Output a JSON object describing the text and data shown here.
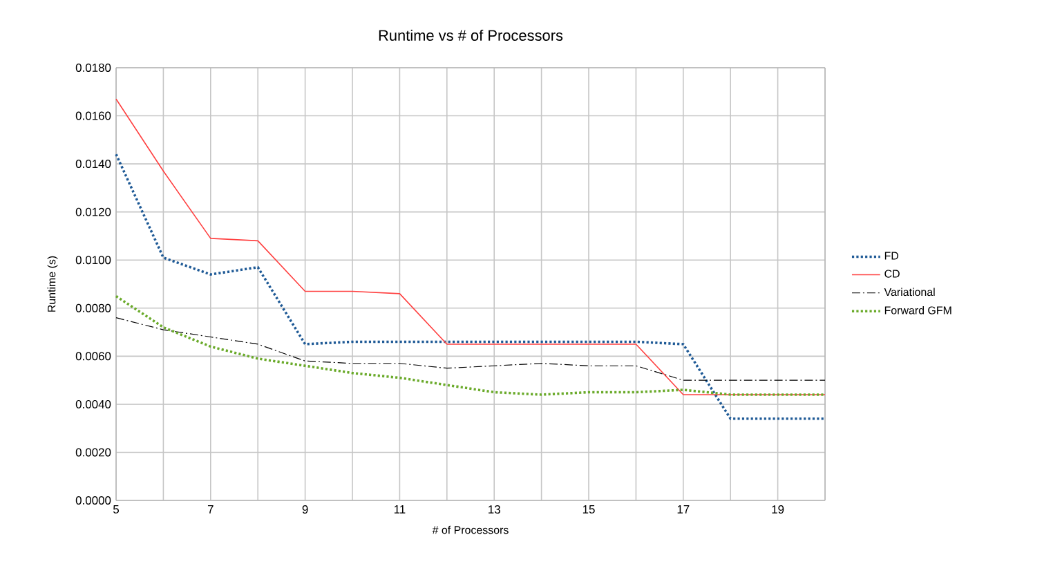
{
  "chart_data": {
    "type": "line",
    "title": "Runtime vs # of Processors",
    "xlabel": "# of Processors",
    "ylabel": "Runtime (s)",
    "x": [
      5,
      6,
      7,
      8,
      9,
      10,
      11,
      12,
      13,
      14,
      15,
      16,
      17,
      18,
      19,
      20
    ],
    "xlim": [
      5,
      20
    ],
    "xticks": [
      5,
      {
        "value": 6,
        "label": null
      },
      7,
      {
        "value": 8,
        "label": null
      },
      9,
      {
        "value": 10,
        "label": null
      },
      11,
      {
        "value": 12,
        "label": null
      },
      13,
      {
        "value": 14,
        "label": null
      },
      15,
      {
        "value": 16,
        "label": null
      },
      17,
      {
        "value": 18,
        "label": null
      },
      19,
      {
        "value": 20,
        "label": null
      }
    ],
    "ylim": [
      0,
      0.018
    ],
    "yticks": [
      {
        "value": 0,
        "label": "0.0000"
      },
      {
        "value": 0.002,
        "label": "0.0020"
      },
      {
        "value": 0.004,
        "label": "0.0040"
      },
      {
        "value": 0.006,
        "label": "0.0060"
      },
      {
        "value": 0.008,
        "label": "0.0080"
      },
      {
        "value": 0.01,
        "label": "0.0100"
      },
      {
        "value": 0.012,
        "label": "0.0120"
      },
      {
        "value": 0.014,
        "label": "0.0140"
      },
      {
        "value": 0.016,
        "label": "0.0160"
      },
      {
        "value": 0.018,
        "label": "0.0180"
      }
    ],
    "grid": true,
    "legend": "right",
    "marker": "none",
    "series": [
      {
        "name": "FD",
        "color": "#1f5a96",
        "line_style": "dotted",
        "values": [
          0.0144,
          0.0101,
          0.0094,
          0.0097,
          0.0065,
          0.0066,
          0.0066,
          0.0066,
          0.0066,
          0.0066,
          0.0066,
          0.0066,
          0.0065,
          0.0034,
          0.0034,
          0.0034
        ]
      },
      {
        "name": "CD",
        "color": "#ff4040",
        "line_style": "solid",
        "values": [
          0.0167,
          0.0137,
          0.0109,
          0.0108,
          0.0087,
          0.0087,
          0.0086,
          0.0065,
          0.0065,
          0.0065,
          0.0065,
          0.0065,
          0.0044,
          0.0044,
          0.0044,
          0.0044
        ]
      },
      {
        "name": "Variational",
        "color": "#000000",
        "line_style": "dashdot",
        "values": [
          0.0076,
          0.0071,
          0.0068,
          0.0065,
          0.0058,
          0.0057,
          0.0057,
          0.0055,
          0.0056,
          0.0057,
          0.0056,
          0.0056,
          0.005,
          0.005,
          0.005,
          0.005
        ]
      },
      {
        "name": "Forward GFM",
        "color": "#6aaa2a",
        "line_style": "dotted",
        "values": [
          0.0085,
          0.0072,
          0.0064,
          0.0059,
          0.0056,
          0.0053,
          0.0051,
          0.0048,
          0.0045,
          0.0044,
          0.0045,
          0.0045,
          0.0046,
          0.0044,
          0.0044,
          0.0044
        ]
      }
    ]
  }
}
